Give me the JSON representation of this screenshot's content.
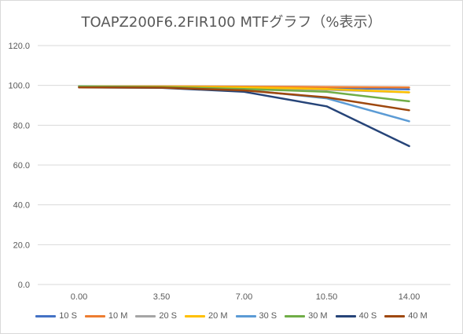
{
  "chart_data": {
    "type": "line",
    "title": "TOAPZ200F6.2FIR100 MTFグラフ（%表示）",
    "categories": [
      "0.00",
      "3.50",
      "7.00",
      "10.50",
      "14.00"
    ],
    "ylim": [
      0,
      120
    ],
    "yticks": [
      "0.0",
      "20.0",
      "40.0",
      "60.0",
      "80.0",
      "100.0",
      "120.0"
    ],
    "grid": true,
    "legend_position": "bottom",
    "series": [
      {
        "name": "10 S",
        "color": "#4472c4",
        "values": [
          99.5,
          99.4,
          99.2,
          98.8,
          98.0
        ]
      },
      {
        "name": "10 M",
        "color": "#ed7d31",
        "values": [
          99.5,
          99.5,
          99.4,
          99.2,
          99.0
        ]
      },
      {
        "name": "20 S",
        "color": "#a5a5a5",
        "values": [
          99.5,
          99.3,
          98.8,
          97.8,
          96.5
        ]
      },
      {
        "name": "20 M",
        "color": "#ffc000",
        "values": [
          99.5,
          99.4,
          99.0,
          98.2,
          96.5
        ]
      },
      {
        "name": "30 S",
        "color": "#5b9bd5",
        "values": [
          99.5,
          99.0,
          97.8,
          93.5,
          82.0
        ]
      },
      {
        "name": "30 M",
        "color": "#70ad47",
        "values": [
          99.5,
          99.2,
          98.2,
          96.8,
          92.0
        ]
      },
      {
        "name": "40 S",
        "color": "#264478",
        "values": [
          99.0,
          98.8,
          96.8,
          89.5,
          69.5
        ]
      },
      {
        "name": "40 M",
        "color": "#9e480e",
        "values": [
          99.0,
          98.9,
          97.5,
          94.0,
          87.5
        ]
      }
    ]
  }
}
